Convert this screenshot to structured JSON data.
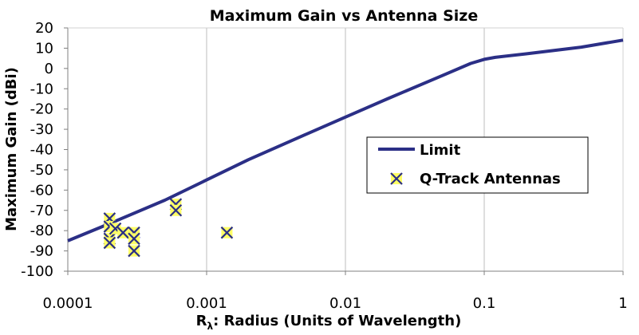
{
  "chart_data": {
    "type": "scatter",
    "title": "Maximum Gain vs Antenna Size",
    "xlabel": {
      "main": "R",
      "subscript": "λ",
      "rest": ": Radius (Units of Wavelength)"
    },
    "ylabel": "Maximum Gain (dBi)",
    "x_scale": "log",
    "xlim": [
      0.0001,
      1
    ],
    "ylim": [
      -100,
      20
    ],
    "x_ticks": [
      0.0001,
      0.001,
      0.01,
      0.1,
      1
    ],
    "x_tick_labels": [
      "0.0001",
      "0.001",
      "0.01",
      "0.1",
      "1"
    ],
    "y_ticks": [
      20,
      10,
      0,
      -10,
      -20,
      -30,
      -40,
      -50,
      -60,
      -70,
      -80,
      -90,
      -100
    ],
    "y_tick_labels": [
      "20",
      "10",
      "0",
      "-10",
      "-20",
      "-30",
      "-40",
      "-50",
      "-60",
      "-70",
      "-80",
      "-90",
      "-100"
    ],
    "grid": "vertical",
    "legend_position": "center-right",
    "series": [
      {
        "name": "Limit",
        "kind": "line",
        "color": "#2b2f86",
        "points": [
          [
            0.0001,
            -85
          ],
          [
            0.0002,
            -76.5
          ],
          [
            0.0005,
            -65
          ],
          [
            0.001,
            -55
          ],
          [
            0.002,
            -45
          ],
          [
            0.005,
            -33
          ],
          [
            0.01,
            -24
          ],
          [
            0.02,
            -15
          ],
          [
            0.05,
            -3.5
          ],
          [
            0.08,
            2.5
          ],
          [
            0.1,
            4.5
          ],
          [
            0.12,
            5.5
          ],
          [
            0.2,
            7.2
          ],
          [
            0.5,
            10.5
          ],
          [
            1,
            14
          ]
        ]
      },
      {
        "name": "Q-Track Antennas",
        "kind": "markers",
        "marker_fill": "#ffff66",
        "marker_stroke": "#2b2f86",
        "points": [
          [
            0.0002,
            -74
          ],
          [
            0.0002,
            -78
          ],
          [
            0.0002,
            -84
          ],
          [
            0.0002,
            -86
          ],
          [
            0.00022,
            -79
          ],
          [
            0.00025,
            -81
          ],
          [
            0.0003,
            -81
          ],
          [
            0.0003,
            -84
          ],
          [
            0.0003,
            -90
          ],
          [
            0.0006,
            -67
          ],
          [
            0.0006,
            -70
          ],
          [
            0.0014,
            -81
          ]
        ]
      }
    ]
  }
}
